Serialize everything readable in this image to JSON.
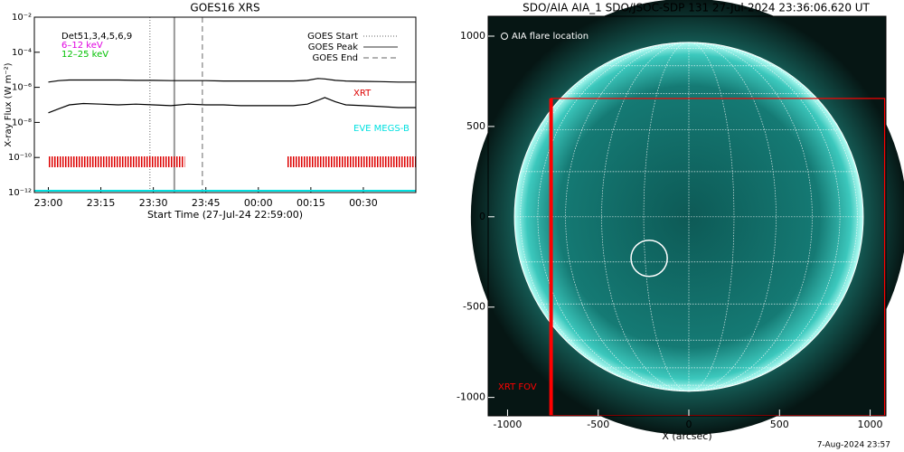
{
  "chart_data": [
    {
      "type": "line",
      "title": "GOES16 XRS",
      "xlabel": "Start Time (27-Jul-24 22:59:00)",
      "ylabel": "X-ray Flux (W m⁻²)",
      "log": true,
      "xlim": [
        "22:56",
        "00:45"
      ],
      "xticks": [
        "23:00",
        "23:15",
        "23:30",
        "23:45",
        "00:00",
        "00:15",
        "00:30"
      ],
      "ylim": [
        1e-12,
        0.01
      ],
      "yticks": [
        {
          "value": 1e-12,
          "label": "10⁻¹²"
        },
        {
          "value": 1e-10,
          "label": "10⁻¹⁰"
        },
        {
          "value": 1e-08,
          "label": "10⁻⁸"
        },
        {
          "value": 1e-06,
          "label": "10⁻⁶"
        },
        {
          "value": 0.0001,
          "label": "10⁻⁴"
        },
        {
          "value": 0.01,
          "label": "10⁻²"
        }
      ],
      "x": [
        "23:00",
        "23:03",
        "23:06",
        "23:10",
        "23:15",
        "23:20",
        "23:25",
        "23:30",
        "23:35",
        "23:40",
        "23:45",
        "23:50",
        "23:55",
        "00:00",
        "00:05",
        "00:10",
        "00:14",
        "00:17",
        "00:19",
        "00:22",
        "00:25",
        "00:30",
        "00:35",
        "00:40",
        "00:45"
      ],
      "series": [
        {
          "color": "#000000",
          "values": [
            2e-06,
            2.4e-06,
            2.6e-06,
            2.6e-06,
            2.6e-06,
            2.6e-06,
            2.5e-06,
            2.5e-06,
            2.4e-06,
            2.4e-06,
            2.4e-06,
            2.3e-06,
            2.3e-06,
            2.3e-06,
            2.3e-06,
            2.3e-06,
            2.5e-06,
            3.2e-06,
            3e-06,
            2.5e-06,
            2.3e-06,
            2.2e-06,
            2.1e-06,
            2e-06,
            2e-06
          ]
        },
        {
          "color": "#000000",
          "values": [
            3.5e-08,
            6e-08,
            1e-07,
            1.2e-07,
            1.1e-07,
            1e-07,
            1.1e-07,
            1e-07,
            9e-08,
            1.1e-07,
            1e-07,
            1e-07,
            9e-08,
            9e-08,
            9e-08,
            9e-08,
            1.1e-07,
            1.8e-07,
            2.6e-07,
            1.5e-07,
            1e-07,
            9e-08,
            8e-08,
            7e-08,
            7e-08
          ]
        }
      ],
      "labels": [
        {
          "text": "Det51,3,4,5,6,9",
          "color": "#000000"
        },
        {
          "text": "6–12 keV",
          "color": "#e000e0"
        },
        {
          "text": "12–25 keV",
          "color": "#00c000"
        }
      ],
      "events": [
        {
          "name": "GOES Start",
          "x": "23:29",
          "style": "dotted",
          "color": "#999999"
        },
        {
          "name": "GOES Peak",
          "x": "23:36",
          "style": "solid",
          "color": "#999999"
        },
        {
          "name": "GOES End",
          "x": "23:44",
          "style": "dashed",
          "color": "#999999"
        }
      ],
      "coverage": [
        {
          "name": "XRT",
          "color": "#dd0000",
          "intervals": [
            [
              "23:00",
              "23:39"
            ],
            [
              "00:08",
              "00:45"
            ]
          ]
        },
        {
          "name": "EVE MEGS-B",
          "color": "#00e0e0",
          "intervals": [
            [
              "22:56",
              "00:45"
            ]
          ]
        }
      ]
    },
    {
      "type": "image",
      "title": "SDO/AIA AIA_1 SDO/JSOC-SDP 131 27-Jul-2024 23:36:06.620 UT",
      "xlabel": "X (arcsec)",
      "xlim": [
        -1107,
        1087
      ],
      "ylim": [
        -1102,
        1110
      ],
      "xticks": [
        -1000,
        -500,
        0,
        500,
        1000
      ],
      "yticks": [
        -1000,
        -500,
        0,
        500,
        1000
      ],
      "legend": "AIA flare location",
      "solar_radius": 962,
      "flare_location": {
        "x": -219,
        "y": -230,
        "radius": 100
      },
      "fov": {
        "label": "XRT FOV",
        "color": "#ff0000",
        "xlim": [
          -760,
          1080
        ],
        "ylim": [
          -1100,
          655
        ]
      }
    }
  ],
  "footer": "7-Aug-2024 23:57"
}
